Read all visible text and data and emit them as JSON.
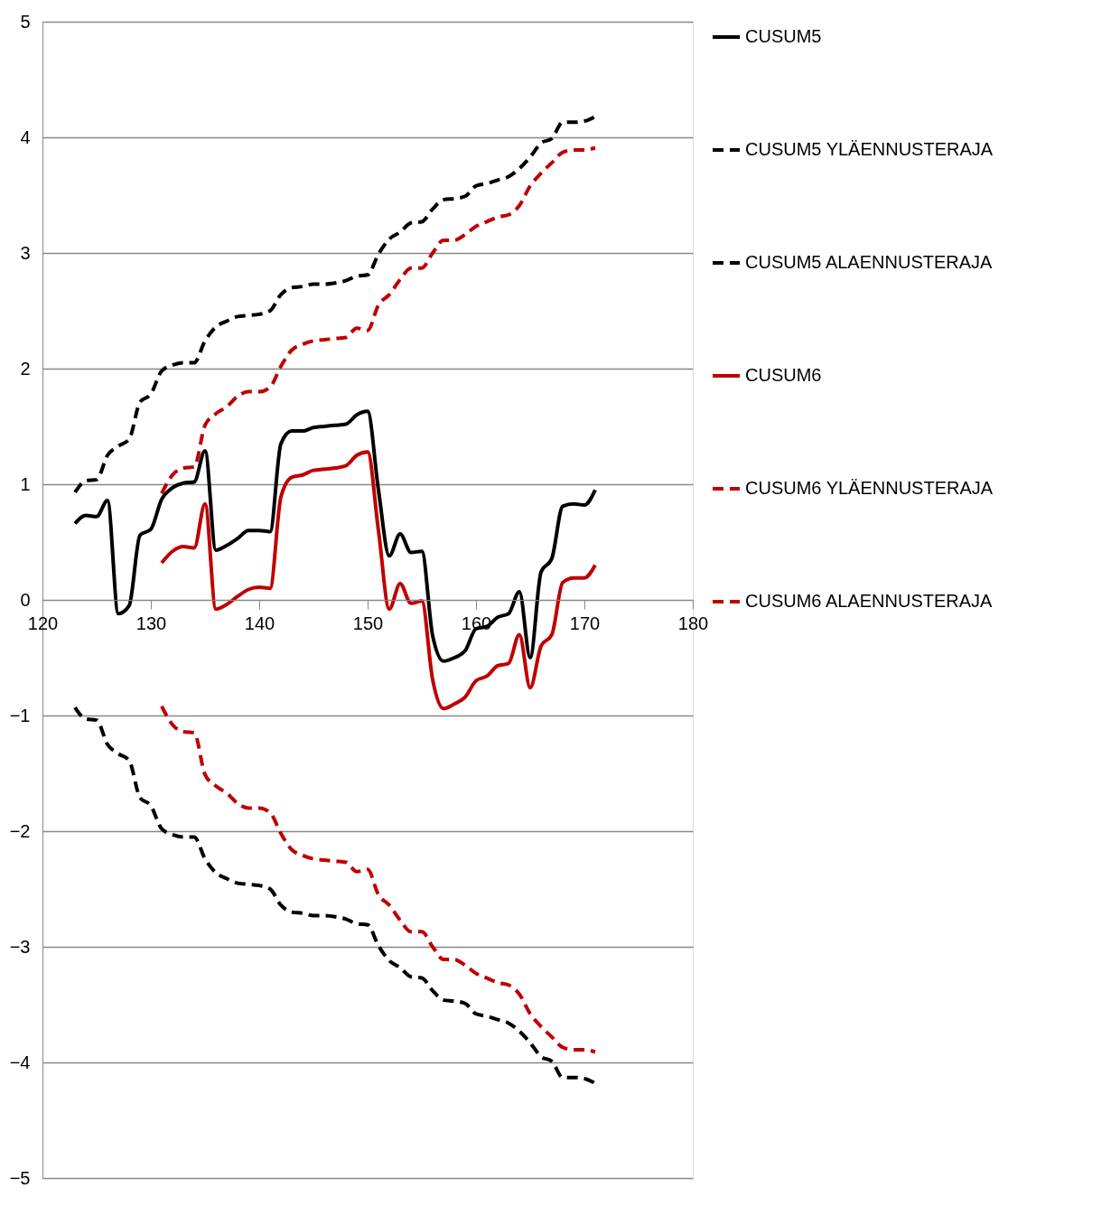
{
  "chart_data": {
    "type": "line",
    "xlim": [
      120,
      180
    ],
    "xticks": [
      120,
      130,
      140,
      150,
      160,
      170,
      180
    ],
    "ylim": [
      -5,
      5
    ],
    "yticks": [
      -5,
      -4,
      -3,
      -2,
      -1,
      0,
      1,
      2,
      3,
      4,
      5
    ],
    "grid": "y",
    "legend": "right",
    "marker": "none",
    "series": [
      {
        "name": "CUSUM5",
        "color": "#000000",
        "line_style": "solid",
        "x": [
          123,
          124,
          125,
          126,
          127,
          128,
          129,
          130,
          131,
          132,
          133,
          134,
          135,
          136,
          137,
          138,
          139,
          140,
          141,
          142,
          143,
          144,
          145,
          146,
          147,
          148,
          149,
          150,
          151,
          152,
          153,
          154,
          155,
          156,
          157,
          158,
          159,
          160,
          161,
          162,
          163,
          164,
          165,
          166,
          167,
          168,
          169,
          170,
          171
        ],
        "values": [
          0.66,
          0.73,
          0.72,
          0.86,
          -0.12,
          -0.05,
          0.56,
          0.61,
          0.87,
          0.97,
          1.01,
          1.02,
          1.29,
          0.43,
          0.47,
          0.53,
          0.6,
          0.6,
          0.59,
          1.35,
          1.46,
          1.46,
          1.49,
          1.5,
          1.51,
          1.52,
          1.6,
          1.63,
          0.95,
          0.38,
          0.57,
          0.41,
          0.42,
          -0.31,
          -0.53,
          -0.5,
          -0.44,
          -0.25,
          -0.23,
          -0.15,
          -0.12,
          0.07,
          -0.5,
          0.24,
          0.36,
          0.81,
          0.83,
          0.82,
          0.95
        ]
      },
      {
        "name": "CUSUM5 YLÄENNUSTERAJA",
        "color": "#000000",
        "line_style": "dashed",
        "x": [
          123,
          124,
          125,
          126,
          127,
          128,
          129,
          130,
          131,
          132,
          133,
          134,
          135,
          136,
          137,
          138,
          139,
          140,
          141,
          142,
          143,
          144,
          145,
          146,
          147,
          148,
          149,
          150,
          151,
          152,
          153,
          154,
          155,
          156,
          157,
          158,
          159,
          160,
          161,
          162,
          163,
          164,
          165,
          166,
          167,
          168,
          169,
          170,
          171
        ],
        "values": [
          0.93,
          1.03,
          1.04,
          1.25,
          1.33,
          1.39,
          1.71,
          1.78,
          1.98,
          2.03,
          2.05,
          2.05,
          2.24,
          2.36,
          2.41,
          2.45,
          2.46,
          2.47,
          2.5,
          2.64,
          2.7,
          2.71,
          2.73,
          2.73,
          2.74,
          2.76,
          2.8,
          2.81,
          2.99,
          3.12,
          3.18,
          3.26,
          3.27,
          3.38,
          3.46,
          3.47,
          3.49,
          3.58,
          3.6,
          3.63,
          3.66,
          3.73,
          3.83,
          3.95,
          3.99,
          4.13,
          4.13,
          4.14,
          4.18
        ]
      },
      {
        "name": "CUSUM5 ALAENNUSTERAJA",
        "color": "#000000",
        "line_style": "dashed",
        "x": [
          123,
          124,
          125,
          126,
          127,
          128,
          129,
          130,
          131,
          132,
          133,
          134,
          135,
          136,
          137,
          138,
          139,
          140,
          141,
          142,
          143,
          144,
          145,
          146,
          147,
          148,
          149,
          150,
          151,
          152,
          153,
          154,
          155,
          156,
          157,
          158,
          159,
          160,
          161,
          162,
          163,
          164,
          165,
          166,
          167,
          168,
          169,
          170,
          171
        ],
        "values": [
          -0.93,
          -1.03,
          -1.04,
          -1.25,
          -1.33,
          -1.39,
          -1.71,
          -1.78,
          -1.98,
          -2.03,
          -2.05,
          -2.05,
          -2.24,
          -2.36,
          -2.41,
          -2.45,
          -2.46,
          -2.47,
          -2.5,
          -2.64,
          -2.7,
          -2.71,
          -2.73,
          -2.73,
          -2.74,
          -2.76,
          -2.8,
          -2.81,
          -2.99,
          -3.12,
          -3.18,
          -3.26,
          -3.27,
          -3.38,
          -3.46,
          -3.47,
          -3.49,
          -3.58,
          -3.6,
          -3.63,
          -3.66,
          -3.73,
          -3.83,
          -3.95,
          -3.99,
          -4.13,
          -4.13,
          -4.14,
          -4.18
        ]
      },
      {
        "name": "CUSUM6",
        "color": "#c00000",
        "line_style": "solid",
        "x": [
          131,
          132,
          133,
          134,
          135,
          136,
          137,
          138,
          139,
          140,
          141,
          142,
          143,
          144,
          145,
          146,
          147,
          148,
          149,
          150,
          151,
          152,
          153,
          154,
          155,
          156,
          157,
          158,
          159,
          160,
          161,
          162,
          163,
          164,
          165,
          166,
          167,
          168,
          169,
          170,
          171
        ],
        "values": [
          0.32,
          0.42,
          0.46,
          0.45,
          0.83,
          -0.08,
          -0.04,
          0.03,
          0.09,
          0.11,
          0.1,
          0.89,
          1.06,
          1.08,
          1.12,
          1.13,
          1.14,
          1.16,
          1.25,
          1.28,
          0.6,
          -0.08,
          0.14,
          -0.03,
          -0.01,
          -0.69,
          -0.94,
          -0.9,
          -0.84,
          -0.7,
          -0.66,
          -0.57,
          -0.55,
          -0.3,
          -0.76,
          -0.4,
          -0.3,
          0.15,
          0.19,
          0.19,
          0.3
        ]
      },
      {
        "name": "CUSUM6 YLÄENNUSTERAJA",
        "color": "#c00000",
        "line_style": "dashed",
        "x": [
          131,
          132,
          133,
          134,
          135,
          136,
          137,
          138,
          139,
          140,
          141,
          142,
          143,
          144,
          145,
          146,
          147,
          148,
          149,
          150,
          151,
          152,
          153,
          154,
          155,
          156,
          157,
          158,
          159,
          160,
          161,
          162,
          163,
          164,
          165,
          166,
          167,
          168,
          169,
          170,
          171
        ],
        "values": [
          0.92,
          1.08,
          1.14,
          1.15,
          1.51,
          1.61,
          1.67,
          1.76,
          1.8,
          1.8,
          1.84,
          2.02,
          2.16,
          2.21,
          2.24,
          2.25,
          2.26,
          2.27,
          2.35,
          2.33,
          2.55,
          2.64,
          2.77,
          2.87,
          2.87,
          3.0,
          3.11,
          3.11,
          3.16,
          3.23,
          3.27,
          3.31,
          3.33,
          3.41,
          3.58,
          3.69,
          3.78,
          3.87,
          3.89,
          3.89,
          3.91
        ]
      },
      {
        "name": "CUSUM6 ALAENNUSTERAJA",
        "color": "#c00000",
        "line_style": "dashed",
        "x": [
          131,
          132,
          133,
          134,
          135,
          136,
          137,
          138,
          139,
          140,
          141,
          142,
          143,
          144,
          145,
          146,
          147,
          148,
          149,
          150,
          151,
          152,
          153,
          154,
          155,
          156,
          157,
          158,
          159,
          160,
          161,
          162,
          163,
          164,
          165,
          166,
          167,
          168,
          169,
          170,
          171
        ],
        "values": [
          -0.92,
          -1.08,
          -1.14,
          -1.15,
          -1.51,
          -1.61,
          -1.67,
          -1.76,
          -1.8,
          -1.8,
          -1.84,
          -2.02,
          -2.16,
          -2.21,
          -2.24,
          -2.25,
          -2.26,
          -2.27,
          -2.35,
          -2.33,
          -2.55,
          -2.64,
          -2.77,
          -2.87,
          -2.87,
          -3.0,
          -3.11,
          -3.11,
          -3.16,
          -3.23,
          -3.27,
          -3.31,
          -3.33,
          -3.41,
          -3.58,
          -3.69,
          -3.78,
          -3.87,
          -3.89,
          -3.89,
          -3.91
        ]
      }
    ]
  }
}
